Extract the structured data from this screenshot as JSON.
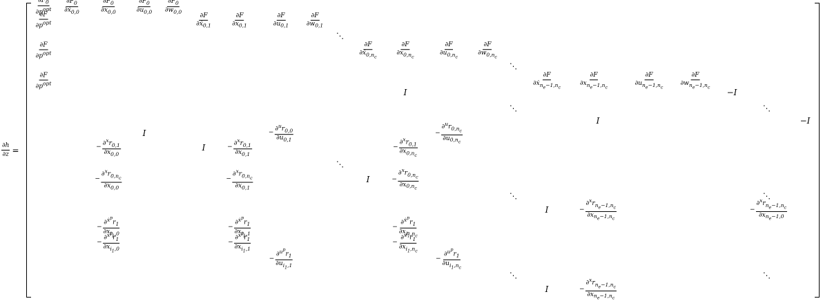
{
  "lhs": {
    "num": "∂h",
    "den": "∂z",
    "eq": "="
  },
  "dots": "⋱",
  "row_pad_a": [
    {
      "id": "r1a",
      "x": 63,
      "y": 10,
      "num": "∂F₀",
      "den": "∂p^opt"
    },
    {
      "id": "r1b",
      "x": 104,
      "y": 10,
      "num": "∂F₀",
      "den": "∂ẋ₀,₀"
    },
    {
      "id": "r1c",
      "x": 157,
      "y": 10,
      "num": "∂F₀",
      "den": "∂x₀,₀"
    },
    {
      "id": "r1d",
      "x": 209,
      "y": 10,
      "num": "∂F₀",
      "den": "∂u₀,₀"
    },
    {
      "id": "r1e",
      "x": 251,
      "y": 10,
      "num": "∂F₀",
      "den": "∂w₀,₀"
    }
  ]
}
